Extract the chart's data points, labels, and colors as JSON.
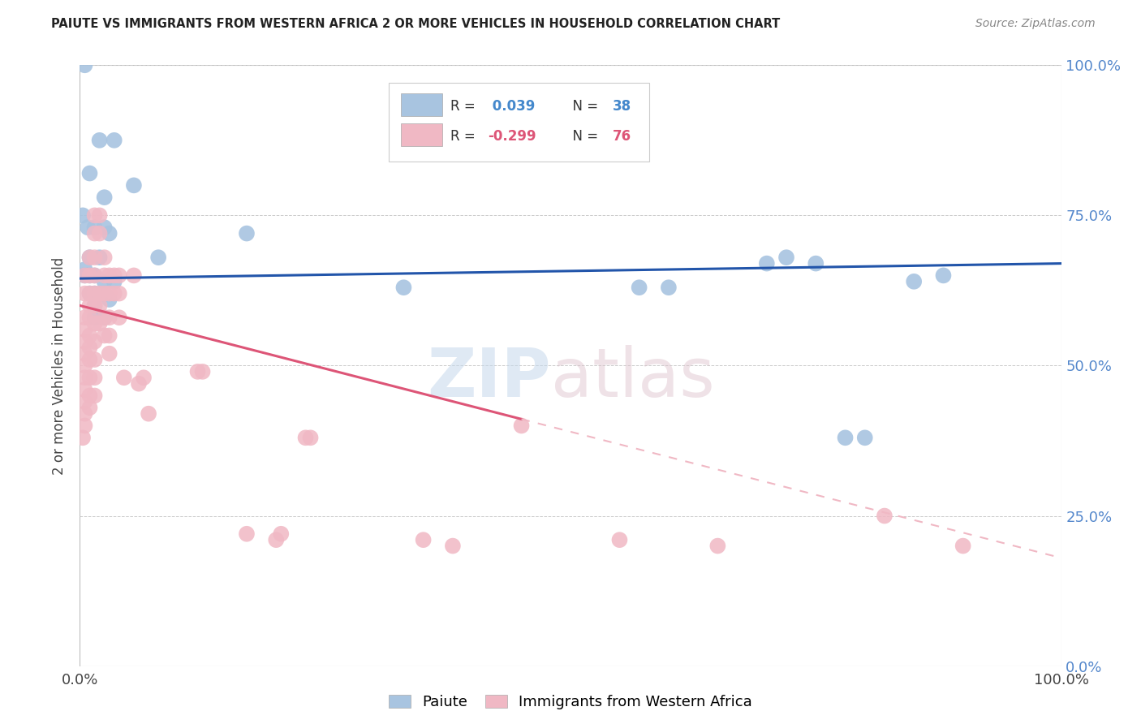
{
  "title": "PAIUTE VS IMMIGRANTS FROM WESTERN AFRICA 2 OR MORE VEHICLES IN HOUSEHOLD CORRELATION CHART",
  "source": "Source: ZipAtlas.com",
  "ylabel": "2 or more Vehicles in Household",
  "color_blue": "#a8c4e0",
  "color_pink": "#f0b8c4",
  "line_blue": "#2255aa",
  "line_pink": "#dd5577",
  "line_pink_dashed": "#f0b8c4",
  "blue_points": [
    [
      0.5,
      100.0
    ],
    [
      2.0,
      87.5
    ],
    [
      3.5,
      87.5
    ],
    [
      1.0,
      82.0
    ],
    [
      2.5,
      78.0
    ],
    [
      5.5,
      80.0
    ],
    [
      0.3,
      75.0
    ],
    [
      0.8,
      73.0
    ],
    [
      1.5,
      73.0
    ],
    [
      2.5,
      73.0
    ],
    [
      3.0,
      72.0
    ],
    [
      1.0,
      68.0
    ],
    [
      2.0,
      68.0
    ],
    [
      0.5,
      66.0
    ],
    [
      0.5,
      65.0
    ],
    [
      1.0,
      65.0
    ],
    [
      1.5,
      65.0
    ],
    [
      2.5,
      64.0
    ],
    [
      3.5,
      64.0
    ],
    [
      1.0,
      62.0
    ],
    [
      1.5,
      62.0
    ],
    [
      2.5,
      62.0
    ],
    [
      3.0,
      61.0
    ],
    [
      1.5,
      60.0
    ],
    [
      1.5,
      58.0
    ],
    [
      2.5,
      58.0
    ],
    [
      8.0,
      68.0
    ],
    [
      17.0,
      72.0
    ],
    [
      33.0,
      63.0
    ],
    [
      57.0,
      63.0
    ],
    [
      60.0,
      63.0
    ],
    [
      70.0,
      67.0
    ],
    [
      72.0,
      68.0
    ],
    [
      75.0,
      67.0
    ],
    [
      78.0,
      38.0
    ],
    [
      80.0,
      38.0
    ],
    [
      85.0,
      64.0
    ],
    [
      88.0,
      65.0
    ]
  ],
  "pink_points": [
    [
      0.3,
      38.0
    ],
    [
      0.5,
      65.0
    ],
    [
      0.5,
      62.0
    ],
    [
      0.5,
      58.0
    ],
    [
      0.5,
      56.0
    ],
    [
      0.5,
      54.0
    ],
    [
      0.5,
      52.0
    ],
    [
      0.5,
      50.0
    ],
    [
      0.5,
      48.0
    ],
    [
      0.5,
      46.0
    ],
    [
      0.5,
      44.0
    ],
    [
      0.5,
      42.0
    ],
    [
      0.5,
      40.0
    ],
    [
      1.0,
      68.0
    ],
    [
      1.0,
      65.0
    ],
    [
      1.0,
      62.0
    ],
    [
      1.0,
      60.0
    ],
    [
      1.0,
      58.0
    ],
    [
      1.0,
      55.0
    ],
    [
      1.0,
      53.0
    ],
    [
      1.0,
      51.0
    ],
    [
      1.0,
      48.0
    ],
    [
      1.0,
      45.0
    ],
    [
      1.0,
      43.0
    ],
    [
      1.5,
      75.0
    ],
    [
      1.5,
      72.0
    ],
    [
      1.5,
      68.0
    ],
    [
      1.5,
      65.0
    ],
    [
      1.5,
      62.0
    ],
    [
      1.5,
      60.0
    ],
    [
      1.5,
      57.0
    ],
    [
      1.5,
      54.0
    ],
    [
      1.5,
      51.0
    ],
    [
      1.5,
      48.0
    ],
    [
      1.5,
      45.0
    ],
    [
      2.0,
      75.0
    ],
    [
      2.0,
      72.0
    ],
    [
      2.0,
      62.0
    ],
    [
      2.0,
      60.0
    ],
    [
      2.0,
      57.0
    ],
    [
      2.5,
      68.0
    ],
    [
      2.5,
      65.0
    ],
    [
      2.5,
      62.0
    ],
    [
      2.5,
      58.0
    ],
    [
      2.5,
      55.0
    ],
    [
      3.0,
      65.0
    ],
    [
      3.0,
      62.0
    ],
    [
      3.0,
      58.0
    ],
    [
      3.0,
      55.0
    ],
    [
      3.0,
      52.0
    ],
    [
      3.5,
      65.0
    ],
    [
      3.5,
      62.0
    ],
    [
      4.0,
      65.0
    ],
    [
      4.0,
      62.0
    ],
    [
      4.0,
      58.0
    ],
    [
      4.5,
      48.0
    ],
    [
      5.5,
      65.0
    ],
    [
      6.0,
      47.0
    ],
    [
      6.5,
      48.0
    ],
    [
      7.0,
      42.0
    ],
    [
      12.0,
      49.0
    ],
    [
      12.5,
      49.0
    ],
    [
      17.0,
      22.0
    ],
    [
      20.0,
      21.0
    ],
    [
      20.5,
      22.0
    ],
    [
      23.0,
      38.0
    ],
    [
      23.5,
      38.0
    ],
    [
      35.0,
      21.0
    ],
    [
      38.0,
      20.0
    ],
    [
      45.0,
      40.0
    ],
    [
      55.0,
      21.0
    ],
    [
      65.0,
      20.0
    ],
    [
      82.0,
      25.0
    ],
    [
      90.0,
      20.0
    ]
  ],
  "xlim": [
    0,
    100
  ],
  "ylim": [
    0,
    100
  ],
  "blue_intercept": 64.5,
  "blue_slope_per100": 2.5,
  "pink_intercept": 60.0,
  "pink_slope_per100": -42.0,
  "pink_solid_end": 45,
  "ytick_positions": [
    0,
    25,
    50,
    75,
    100
  ],
  "ytick_labels": [
    "0.0%",
    "25.0%",
    "50.0%",
    "75.0%",
    "100.0%"
  ],
  "xtick_positions": [
    0,
    100
  ],
  "xtick_labels": [
    "0.0%",
    "100.0%"
  ]
}
